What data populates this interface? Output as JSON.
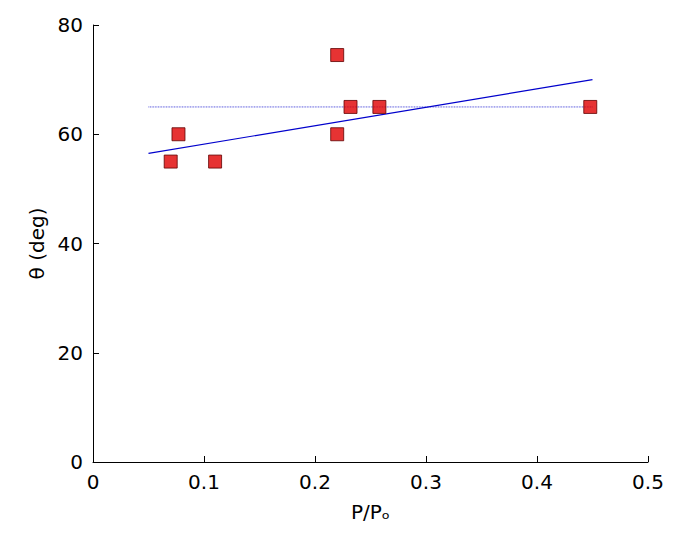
{
  "chart_data": {
    "type": "scatter",
    "xlabel": "P/Pₒ",
    "ylabel": "θ (deg)",
    "xlim": [
      0,
      0.5
    ],
    "xticks": [
      0,
      0.1,
      0.2,
      0.3,
      0.4,
      0.5
    ],
    "ylim": [
      0,
      80
    ],
    "yticks": [
      0,
      20,
      40,
      60,
      80
    ],
    "grid": false,
    "series": [
      {
        "type": "scatter",
        "color": "#e00000",
        "marker": "square",
        "x": [
          0.07,
          0.077,
          0.11,
          0.22,
          0.22,
          0.232,
          0.258,
          0.448
        ],
        "values": [
          55,
          60,
          55,
          74.5,
          60,
          65,
          65,
          65
        ]
      },
      {
        "type": "line",
        "color": "#0000cc",
        "line_style": "solid",
        "x": [
          0.05,
          0.45
        ],
        "values": [
          56.5,
          70
        ]
      },
      {
        "type": "line",
        "color": "#0000cc",
        "line_style": "dotted",
        "x": [
          0.05,
          0.45
        ],
        "values": [
          65,
          65
        ]
      }
    ]
  }
}
